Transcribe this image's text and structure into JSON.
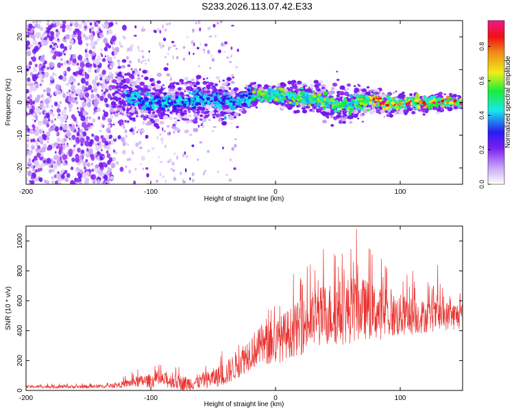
{
  "title": "S233.2026.113.07.42.E33",
  "colors": {
    "trace": "#e8312e",
    "spec_purple": "#7a1ff0",
    "spec_light": "#d6bdf7",
    "axis": "#000000"
  },
  "chart_data": [
    {
      "type": "heatmap",
      "panel": "spectrogram",
      "xlabel": "Height of straight line (km)",
      "ylabel": "Frequency (Hz)",
      "xlim": [
        -200,
        150
      ],
      "ylim": [
        -25,
        25
      ],
      "xticks": [
        {
          "value": -200,
          "label": "-200"
        },
        {
          "value": -100,
          "label": "-100"
        },
        {
          "value": 0,
          "label": "0"
        },
        {
          "value": 100,
          "label": "100"
        }
      ],
      "yticks": [
        {
          "value": 20,
          "label": "20"
        },
        {
          "value": 10,
          "label": "10"
        },
        {
          "value": 0,
          "label": "0"
        },
        {
          "value": -10,
          "label": "-10"
        },
        {
          "value": -20,
          "label": "-20"
        }
      ],
      "description_of_structure": {
        "broadband_noise_region_km": [
          -200,
          -130
        ],
        "wideband_transition_km": [
          -130,
          -30
        ],
        "narrow_signal_centerline_hz": [
          {
            "x": -130,
            "f": 2
          },
          {
            "x": -100,
            "f": 0
          },
          {
            "x": -60,
            "f": 1
          },
          {
            "x": -30,
            "f": 0
          },
          {
            "x": -20,
            "f": 2
          },
          {
            "x": 0,
            "f": 2.5
          },
          {
            "x": 30,
            "f": 1
          },
          {
            "x": 50,
            "f": -1
          },
          {
            "x": 70,
            "f": 0
          },
          {
            "x": 80,
            "f": 1
          },
          {
            "x": 90,
            "f": -1
          },
          {
            "x": 110,
            "f": 0
          },
          {
            "x": 150,
            "f": 0
          }
        ],
        "band_halfwidth_hz": [
          {
            "x": -130,
            "w": 7
          },
          {
            "x": -60,
            "w": 6
          },
          {
            "x": -30,
            "w": 4
          },
          {
            "x": -10,
            "w": 2
          },
          {
            "x": 50,
            "w": 5
          },
          {
            "x": 80,
            "w": 3
          },
          {
            "x": 150,
            "w": 1.5
          }
        ]
      },
      "colorbar": {
        "label": "Normalized spectral amplitude",
        "range": [
          0.0,
          0.95
        ],
        "ticks": [
          {
            "value": 0.0,
            "label": "0.0"
          },
          {
            "value": 0.2,
            "label": "0.2"
          },
          {
            "value": 0.4,
            "label": "0.4"
          },
          {
            "value": 0.6,
            "label": "0.6"
          },
          {
            "value": 0.8,
            "label": "0.8"
          }
        ],
        "stops": [
          "#ffffff",
          "#9a28f5",
          "#2a1cf2",
          "#19e8ea",
          "#18ee39",
          "#efee17",
          "#f08f18",
          "#f01111",
          "#f0168f"
        ]
      }
    },
    {
      "type": "line",
      "panel": "snr",
      "xlabel": "Height of straight line (km)",
      "ylabel": "SNR (10 * v/v)",
      "xlim": [
        -200,
        150
      ],
      "ylim": [
        0,
        1100
      ],
      "xticks": [
        {
          "value": -200,
          "label": "-200"
        },
        {
          "value": -100,
          "label": "-100"
        },
        {
          "value": 0,
          "label": "0"
        },
        {
          "value": 100,
          "label": "100"
        }
      ],
      "yticks": [
        {
          "value": 0,
          "label": "0"
        },
        {
          "value": 200,
          "label": "200"
        },
        {
          "value": 400,
          "label": "400"
        },
        {
          "value": 600,
          "label": "600"
        },
        {
          "value": 800,
          "label": "800"
        },
        {
          "value": 1000,
          "label": "1000"
        }
      ],
      "envelope_mean": [
        {
          "x": -200,
          "y": 25
        },
        {
          "x": -150,
          "y": 25
        },
        {
          "x": -130,
          "y": 30
        },
        {
          "x": -110,
          "y": 60
        },
        {
          "x": -90,
          "y": 70
        },
        {
          "x": -70,
          "y": 45
        },
        {
          "x": -55,
          "y": 70
        },
        {
          "x": -40,
          "y": 110
        },
        {
          "x": -30,
          "y": 180
        },
        {
          "x": -20,
          "y": 260
        },
        {
          "x": -10,
          "y": 300
        },
        {
          "x": 0,
          "y": 320
        },
        {
          "x": 10,
          "y": 380
        },
        {
          "x": 20,
          "y": 420
        },
        {
          "x": 30,
          "y": 470
        },
        {
          "x": 40,
          "y": 510
        },
        {
          "x": 50,
          "y": 520
        },
        {
          "x": 60,
          "y": 540
        },
        {
          "x": 70,
          "y": 550
        },
        {
          "x": 80,
          "y": 520
        },
        {
          "x": 90,
          "y": 500
        },
        {
          "x": 100,
          "y": 500
        },
        {
          "x": 120,
          "y": 495
        },
        {
          "x": 150,
          "y": 500
        }
      ],
      "envelope_spread": [
        {
          "x": -200,
          "y": 10
        },
        {
          "x": -130,
          "y": 12
        },
        {
          "x": -110,
          "y": 40
        },
        {
          "x": -90,
          "y": 50
        },
        {
          "x": -60,
          "y": 50
        },
        {
          "x": -40,
          "y": 80
        },
        {
          "x": -20,
          "y": 120
        },
        {
          "x": 0,
          "y": 150
        },
        {
          "x": 30,
          "y": 200
        },
        {
          "x": 60,
          "y": 230
        },
        {
          "x": 90,
          "y": 160
        },
        {
          "x": 120,
          "y": 110
        },
        {
          "x": 150,
          "y": 90
        }
      ],
      "peaks": [
        {
          "x": 48,
          "y": 900
        },
        {
          "x": 65,
          "y": 1080
        },
        {
          "x": 75,
          "y": 950
        },
        {
          "x": 85,
          "y": 880
        },
        {
          "x": 110,
          "y": 800
        },
        {
          "x": 130,
          "y": 840
        }
      ]
    }
  ]
}
